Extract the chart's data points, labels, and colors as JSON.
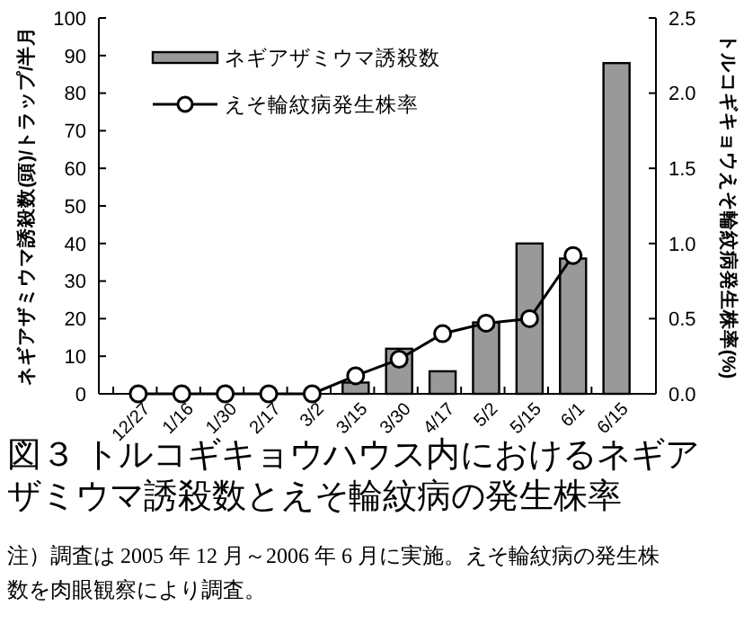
{
  "chart_data": {
    "type": "bar",
    "title": "図３ トルコギキョウハウス内におけるネギアザミウマ誘殺数とえそ輪紋病の発生株率",
    "categories": [
      "12/27",
      "1/16",
      "1/30",
      "2/17",
      "3/2",
      "3/15",
      "3/30",
      "4/17",
      "5/2",
      "5/15",
      "6/1",
      "6/15"
    ],
    "series": [
      {
        "name": "ネギアザミウマ誘殺数",
        "color": "#999999",
        "values": [
          0,
          0,
          0,
          0,
          0,
          3,
          12,
          6,
          19,
          40,
          36,
          88
        ]
      },
      {
        "name": "えそ輪紋病発生株率",
        "type": "line",
        "axis": "y2",
        "color": "#000000",
        "marker": "circle",
        "values": [
          0,
          0,
          0,
          0,
          0,
          0.12,
          0.23,
          0.4,
          0.47,
          0.5,
          0.92,
          null
        ]
      }
    ],
    "ylabel": "ネギアザミウマ誘殺数(頭)/トラップ/半月",
    "y2label": "トルコギキョウえそ輪紋病発生株率(%)",
    "ylim": [
      0,
      100
    ],
    "yticks": [
      0,
      10,
      20,
      30,
      40,
      50,
      60,
      70,
      80,
      90,
      100
    ],
    "y2lim": [
      0,
      2.5
    ],
    "y2ticks": [
      {
        "value": 0,
        "label": "0.0"
      },
      {
        "value": 0.5,
        "label": "0.5"
      },
      {
        "value": 1,
        "label": "1.0"
      },
      {
        "value": 1.5,
        "label": "1.5"
      },
      {
        "value": 2,
        "label": "2.0"
      },
      {
        "value": 2.5,
        "label": "2.5"
      }
    ],
    "legend": "top left",
    "grid": false,
    "annotations": [
      "注）調査は 2005 年 12 月～2006 年 6 月に実施。えそ輪紋病の発生株数を肉眼観察により調査。"
    ]
  }
}
